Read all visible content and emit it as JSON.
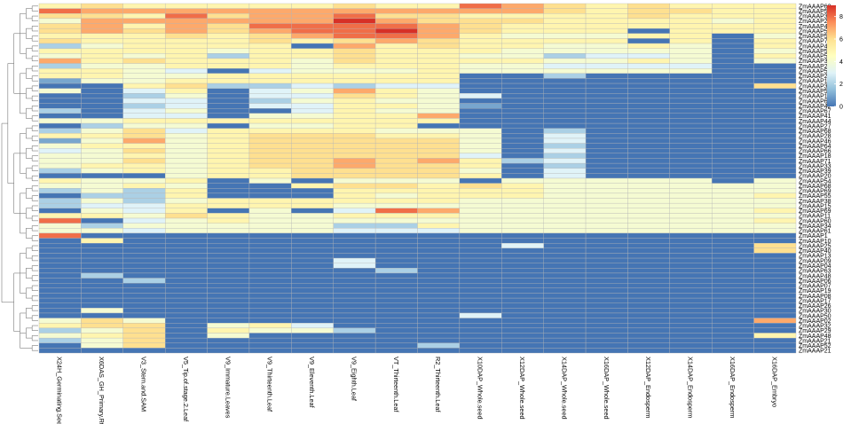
{
  "chart_data": {
    "type": "heatmap",
    "title": "",
    "color_scale": {
      "min": 0,
      "max": 9,
      "ticks": [
        0,
        2,
        4,
        6,
        8
      ],
      "stops": [
        "#4575b4",
        "#91bfdb",
        "#e0f3f8",
        "#ffffbf",
        "#fee090",
        "#fc8d59",
        "#d73027"
      ]
    },
    "columns": [
      "X24H_Germinating.See",
      "X6DAS_GH_Primary.Rt",
      "V3_Stem.and.SAM",
      "V5_Tip.of.stage.2.Leaf",
      "V9_Immature.Leaves",
      "V9_Thirteenth.Leaf",
      "V9_Eleventh.Leaf",
      "V9_Eighth.Leaf",
      "VT_Thirteenth.Leaf",
      "R2_Thirteenth.Leaf",
      "X10DAP_Whole.seed",
      "X12DAP_Whole.seed",
      "X14DAP_Whole.seed",
      "X16DAP_Whole.seed",
      "X12DAP_Endosperm",
      "X14DAP_Endosperm",
      "X16DAP_Endosperm",
      "X16DAP_Embryo"
    ],
    "rows": [
      "ZmAAAP62",
      "ZmAAAP51",
      "ZmAAAP36",
      "ZmAAAP24",
      "ZmAAAP49",
      "ZmAAAP58",
      "ZmAAAP57",
      "ZmAAAP70",
      "ZmAAAP47",
      "ZmAAAP5",
      "ZmAAAP53",
      "ZmAAAP37",
      "ZmAAAP23",
      "ZmAAAP56",
      "ZmAAAP22",
      "ZmAAAP12",
      "ZmAAAP3",
      "ZmAAAP56",
      "ZmAAAP14",
      "ZmAAAP65",
      "ZmAAAP42",
      "ZmAAAP67",
      "ZmAAAP41",
      "ZmAAAP44",
      "ZmAAAP27",
      "ZmAAAP68",
      "ZmAAAP28",
      "ZmAAAP46",
      "ZmAAAP64",
      "ZmAAAP66",
      "ZmAAAP18",
      "ZmAAAP71",
      "ZmAAAP33",
      "ZmAAAP39",
      "ZmAAAP20",
      "ZmAAAP54",
      "ZmAAAP68",
      "ZmAAAP69",
      "ZmAAAP55",
      "ZmAAAP38",
      "ZmAAAP15",
      "ZmAAAP69",
      "ZmAAAP11",
      "ZmAAAP60",
      "ZmAAAP34",
      "ZmAAAP61",
      "ZmAAAP1",
      "ZmAAAP10",
      "ZmAAAP25",
      "ZmAAAP40",
      "ZmAAAP13",
      "ZmAAAP09",
      "ZmAAAP04",
      "ZmAAAP63",
      "ZmAAAP48",
      "ZmAAAP06",
      "ZmAAAP07",
      "ZmAAAP19",
      "ZmAAAP08",
      "ZmAAAP17",
      "ZmAAAP26",
      "ZmAAAP30",
      "ZmAAAP50",
      "ZmAAAP02",
      "ZmAAAP32",
      "ZmAAAP29",
      "ZmAAAP48",
      "ZmAAAP21",
      "ZmAAAP52",
      "ZmAAAP21"
    ],
    "values": [
      [
        5,
        6,
        5,
        5,
        5,
        5,
        5,
        6,
        5,
        5,
        8,
        7,
        6,
        5,
        6,
        5,
        5,
        5
      ],
      [
        8,
        7,
        7,
        7,
        7,
        7,
        7,
        7,
        7,
        7,
        7,
        7,
        6,
        5,
        6,
        6,
        5,
        5
      ],
      [
        6,
        6,
        5,
        8,
        6,
        7,
        7,
        8,
        6,
        6,
        5,
        5,
        5,
        5,
        6,
        5,
        5,
        5
      ],
      [
        4,
        7,
        7,
        7,
        7,
        7,
        7,
        9,
        7,
        6,
        6,
        6,
        5,
        5,
        5,
        5,
        4,
        5
      ],
      [
        6,
        7,
        5,
        7,
        6,
        8,
        8,
        8,
        8,
        7,
        6,
        5,
        5,
        5,
        5,
        5,
        5,
        5
      ],
      [
        6,
        7,
        6,
        7,
        6,
        7,
        8,
        8,
        9,
        7,
        6,
        5,
        5,
        5,
        0,
        5,
        5,
        5
      ],
      [
        5,
        5,
        5,
        6,
        5,
        6,
        7,
        8,
        8,
        7,
        5,
        4,
        4,
        4,
        5,
        5,
        0,
        4
      ],
      [
        6,
        5,
        5,
        5,
        5,
        6,
        5,
        6,
        7,
        6,
        5,
        5,
        5,
        5,
        0,
        5,
        0,
        5
      ],
      [
        2,
        4,
        5,
        5,
        5,
        5,
        0,
        7,
        5,
        6,
        5,
        5,
        4,
        4,
        5,
        4,
        0,
        5
      ],
      [
        5,
        5,
        5,
        5,
        4,
        5,
        5,
        6,
        5,
        5,
        5,
        4,
        4,
        4,
        4,
        4,
        0,
        4
      ],
      [
        4,
        5,
        4,
        5,
        2,
        5,
        5,
        6,
        5,
        5,
        4,
        4,
        2,
        3,
        3,
        4,
        0,
        5
      ],
      [
        7,
        5,
        6,
        5,
        5,
        5,
        4,
        6,
        5,
        5,
        5,
        5,
        4,
        4,
        5,
        4,
        0,
        4
      ],
      [
        2,
        4,
        4,
        5,
        5,
        5,
        4,
        5,
        5,
        5,
        4,
        4,
        3,
        3,
        3,
        3,
        0,
        0
      ],
      [
        5,
        5,
        4,
        3,
        0,
        3,
        4,
        4,
        4,
        5,
        4,
        4,
        4,
        4,
        4,
        4,
        0,
        0
      ],
      [
        5,
        5,
        4,
        4,
        5,
        5,
        5,
        5,
        5,
        5,
        0,
        0,
        2,
        0,
        0,
        0,
        0,
        0
      ],
      [
        1,
        4,
        4,
        5,
        5,
        5,
        5,
        5,
        5,
        5,
        0,
        0,
        0,
        0,
        0,
        0,
        0,
        0
      ],
      [
        0,
        0,
        5,
        6,
        2,
        2,
        3,
        2,
        3,
        3,
        0,
        0,
        0,
        0,
        0,
        0,
        0,
        6
      ],
      [
        4,
        0,
        3,
        5,
        0,
        3,
        4,
        7,
        5,
        4,
        0,
        0,
        0,
        0,
        0,
        0,
        0,
        0
      ],
      [
        0,
        0,
        2,
        4,
        0,
        3,
        3,
        6,
        5,
        4,
        3,
        0,
        0,
        0,
        0,
        0,
        0,
        0
      ],
      [
        0,
        0,
        3,
        3,
        0,
        2,
        4,
        5,
        4,
        4,
        0,
        0,
        0,
        0,
        0,
        0,
        0,
        0
      ],
      [
        0,
        0,
        2,
        3,
        0,
        3,
        3,
        5,
        5,
        4,
        1,
        0,
        0,
        0,
        0,
        0,
        0,
        0
      ],
      [
        2,
        0,
        3,
        4,
        0,
        0,
        3,
        5,
        4,
        4,
        0,
        0,
        0,
        0,
        0,
        0,
        0,
        0
      ],
      [
        0,
        0,
        3,
        3,
        0,
        4,
        4,
        5,
        5,
        7,
        0,
        0,
        0,
        0,
        0,
        0,
        0,
        0
      ],
      [
        4,
        4,
        5,
        5,
        5,
        5,
        5,
        5,
        5,
        5,
        0,
        0,
        0,
        0,
        0,
        0,
        0,
        0
      ],
      [
        0,
        2,
        4,
        4,
        0,
        4,
        4,
        5,
        5,
        0,
        0,
        0,
        0,
        0,
        0,
        0,
        0,
        0
      ],
      [
        2,
        4,
        6,
        3,
        5,
        5,
        5,
        5,
        4,
        4,
        4,
        0,
        2,
        0,
        0,
        0,
        0,
        0
      ],
      [
        5,
        5,
        6,
        4,
        5,
        6,
        6,
        6,
        5,
        5,
        4,
        0,
        3,
        0,
        0,
        0,
        0,
        0
      ],
      [
        1,
        4,
        7,
        4,
        5,
        6,
        6,
        6,
        6,
        6,
        4,
        0,
        3,
        0,
        0,
        0,
        0,
        0
      ],
      [
        4,
        5,
        5,
        4,
        5,
        6,
        6,
        6,
        6,
        6,
        4,
        0,
        2,
        0,
        0,
        0,
        0,
        0
      ],
      [
        3,
        4,
        6,
        4,
        5,
        6,
        6,
        6,
        6,
        6,
        4,
        0,
        3,
        0,
        0,
        0,
        0,
        0
      ],
      [
        4,
        4,
        5,
        4,
        5,
        6,
        6,
        6,
        6,
        6,
        3,
        0,
        2,
        0,
        0,
        0,
        0,
        0
      ],
      [
        4,
        4,
        6,
        4,
        5,
        6,
        6,
        7,
        6,
        7,
        5,
        2,
        3,
        0,
        0,
        0,
        0,
        0
      ],
      [
        4,
        5,
        5,
        4,
        5,
        6,
        6,
        7,
        6,
        6,
        5,
        0,
        2,
        0,
        0,
        0,
        0,
        0
      ],
      [
        2,
        4,
        5,
        4,
        5,
        5,
        6,
        6,
        6,
        6,
        4,
        0,
        3,
        0,
        0,
        0,
        0,
        0
      ],
      [
        0,
        0,
        0,
        4,
        5,
        5,
        6,
        6,
        6,
        6,
        5,
        0,
        3,
        0,
        0,
        0,
        0,
        0
      ],
      [
        5,
        4,
        4,
        5,
        0,
        4,
        0,
        4,
        4,
        4,
        0,
        4,
        4,
        4,
        4,
        4,
        0,
        4
      ],
      [
        4,
        4,
        5,
        4,
        0,
        0,
        5,
        6,
        6,
        5,
        6,
        5,
        4,
        4,
        4,
        4,
        4,
        4
      ],
      [
        2,
        4,
        2,
        5,
        0,
        0,
        0,
        5,
        5,
        5,
        5,
        5,
        4,
        4,
        4,
        4,
        4,
        4
      ],
      [
        0,
        2,
        2,
        5,
        0,
        0,
        0,
        5,
        4,
        5,
        5,
        5,
        4,
        4,
        4,
        4,
        4,
        5
      ],
      [
        2,
        4,
        2,
        4,
        5,
        5,
        5,
        5,
        5,
        5,
        4,
        4,
        4,
        4,
        4,
        4,
        4,
        4
      ],
      [
        2,
        3,
        3,
        5,
        5,
        5,
        5,
        4,
        4,
        4,
        4,
        4,
        4,
        4,
        4,
        4,
        4,
        4
      ],
      [
        0,
        4,
        3,
        5,
        0,
        4,
        0,
        3,
        8,
        7,
        4,
        4,
        4,
        4,
        4,
        4,
        4,
        5
      ],
      [
        5,
        5,
        4,
        6,
        5,
        4,
        4,
        5,
        5,
        5,
        4,
        4,
        4,
        4,
        4,
        4,
        4,
        4
      ],
      [
        8,
        0,
        3,
        4,
        5,
        4,
        4,
        4,
        4,
        4,
        4,
        4,
        4,
        4,
        4,
        4,
        4,
        5
      ],
      [
        4,
        2,
        4,
        4,
        4,
        4,
        4,
        2,
        2,
        5,
        4,
        4,
        4,
        4,
        4,
        4,
        4,
        4
      ],
      [
        4,
        4,
        3,
        4,
        4,
        4,
        4,
        3,
        3,
        3,
        4,
        4,
        4,
        4,
        4,
        4,
        4,
        4
      ],
      [
        8,
        0,
        0,
        0,
        0,
        0,
        0,
        0,
        0,
        0,
        0,
        0,
        0,
        0,
        0,
        0,
        0,
        0
      ],
      [
        0,
        5,
        0,
        0,
        0,
        0,
        0,
        0,
        0,
        0,
        0,
        0,
        0,
        0,
        0,
        0,
        0,
        0
      ],
      [
        0,
        0,
        0,
        0,
        0,
        0,
        0,
        0,
        0,
        0,
        0,
        3,
        0,
        0,
        0,
        0,
        0,
        6
      ],
      [
        0,
        0,
        0,
        0,
        0,
        0,
        0,
        0,
        0,
        0,
        0,
        0,
        0,
        0,
        0,
        0,
        0,
        6
      ],
      [
        0,
        0,
        0,
        0,
        0,
        0,
        0,
        0,
        0,
        0,
        0,
        0,
        0,
        0,
        0,
        0,
        0,
        0
      ],
      [
        0,
        0,
        0,
        0,
        0,
        0,
        0,
        3,
        0,
        0,
        0,
        0,
        0,
        0,
        0,
        0,
        0,
        0
      ],
      [
        0,
        0,
        0,
        0,
        0,
        0,
        0,
        3,
        0,
        0,
        0,
        0,
        0,
        0,
        0,
        0,
        0,
        0
      ],
      [
        0,
        0,
        0,
        0,
        0,
        0,
        0,
        0,
        2,
        0,
        0,
        0,
        0,
        0,
        0,
        0,
        0,
        0
      ],
      [
        0,
        2,
        0,
        0,
        0,
        0,
        0,
        0,
        0,
        0,
        0,
        0,
        0,
        0,
        0,
        0,
        0,
        0
      ],
      [
        0,
        0,
        2,
        0,
        0,
        0,
        0,
        0,
        0,
        0,
        0,
        0,
        0,
        0,
        0,
        0,
        0,
        0
      ],
      [
        0,
        0,
        0,
        0,
        0,
        0,
        0,
        0,
        0,
        0,
        0,
        0,
        0,
        0,
        0,
        0,
        0,
        0
      ],
      [
        0,
        0,
        0,
        0,
        0,
        0,
        0,
        0,
        0,
        0,
        0,
        0,
        0,
        0,
        0,
        0,
        0,
        0
      ],
      [
        0,
        0,
        0,
        0,
        0,
        0,
        0,
        0,
        0,
        0,
        0,
        0,
        0,
        0,
        0,
        0,
        0,
        0
      ],
      [
        0,
        0,
        0,
        0,
        0,
        0,
        0,
        0,
        0,
        0,
        0,
        0,
        0,
        0,
        0,
        0,
        0,
        0
      ],
      [
        0,
        0,
        0,
        0,
        0,
        0,
        0,
        0,
        0,
        0,
        0,
        0,
        0,
        0,
        0,
        0,
        0,
        0
      ],
      [
        0,
        4,
        0,
        0,
        0,
        0,
        0,
        0,
        0,
        0,
        0,
        0,
        0,
        0,
        0,
        0,
        0,
        0
      ],
      [
        0,
        0,
        0,
        0,
        0,
        0,
        0,
        0,
        0,
        0,
        3,
        0,
        0,
        0,
        0,
        0,
        0,
        0
      ],
      [
        4,
        6,
        4,
        0,
        0,
        0,
        0,
        0,
        0,
        0,
        0,
        0,
        0,
        0,
        0,
        0,
        0,
        7
      ],
      [
        5,
        6,
        6,
        0,
        4,
        5,
        3,
        0,
        0,
        0,
        0,
        0,
        0,
        0,
        0,
        0,
        0,
        0
      ],
      [
        2,
        4,
        6,
        0,
        5,
        4,
        4,
        2,
        0,
        0,
        0,
        0,
        0,
        0,
        0,
        0,
        0,
        0
      ],
      [
        4,
        5,
        6,
        0,
        4,
        0,
        0,
        0,
        0,
        0,
        0,
        0,
        0,
        0,
        0,
        0,
        0,
        5
      ],
      [
        2,
        4,
        6,
        0,
        0,
        0,
        0,
        0,
        0,
        0,
        0,
        0,
        0,
        0,
        0,
        0,
        0,
        0
      ],
      [
        0,
        4,
        6,
        0,
        0,
        0,
        0,
        0,
        0,
        2,
        0,
        0,
        0,
        0,
        0,
        0,
        0,
        0
      ],
      [
        0,
        0,
        0,
        0,
        0,
        0,
        0,
        0,
        0,
        0,
        0,
        0,
        0,
        0,
        0,
        0,
        0,
        0
      ]
    ],
    "xlabel": "",
    "ylabel": "",
    "row_dendrogram": true,
    "legend_position": "right"
  }
}
